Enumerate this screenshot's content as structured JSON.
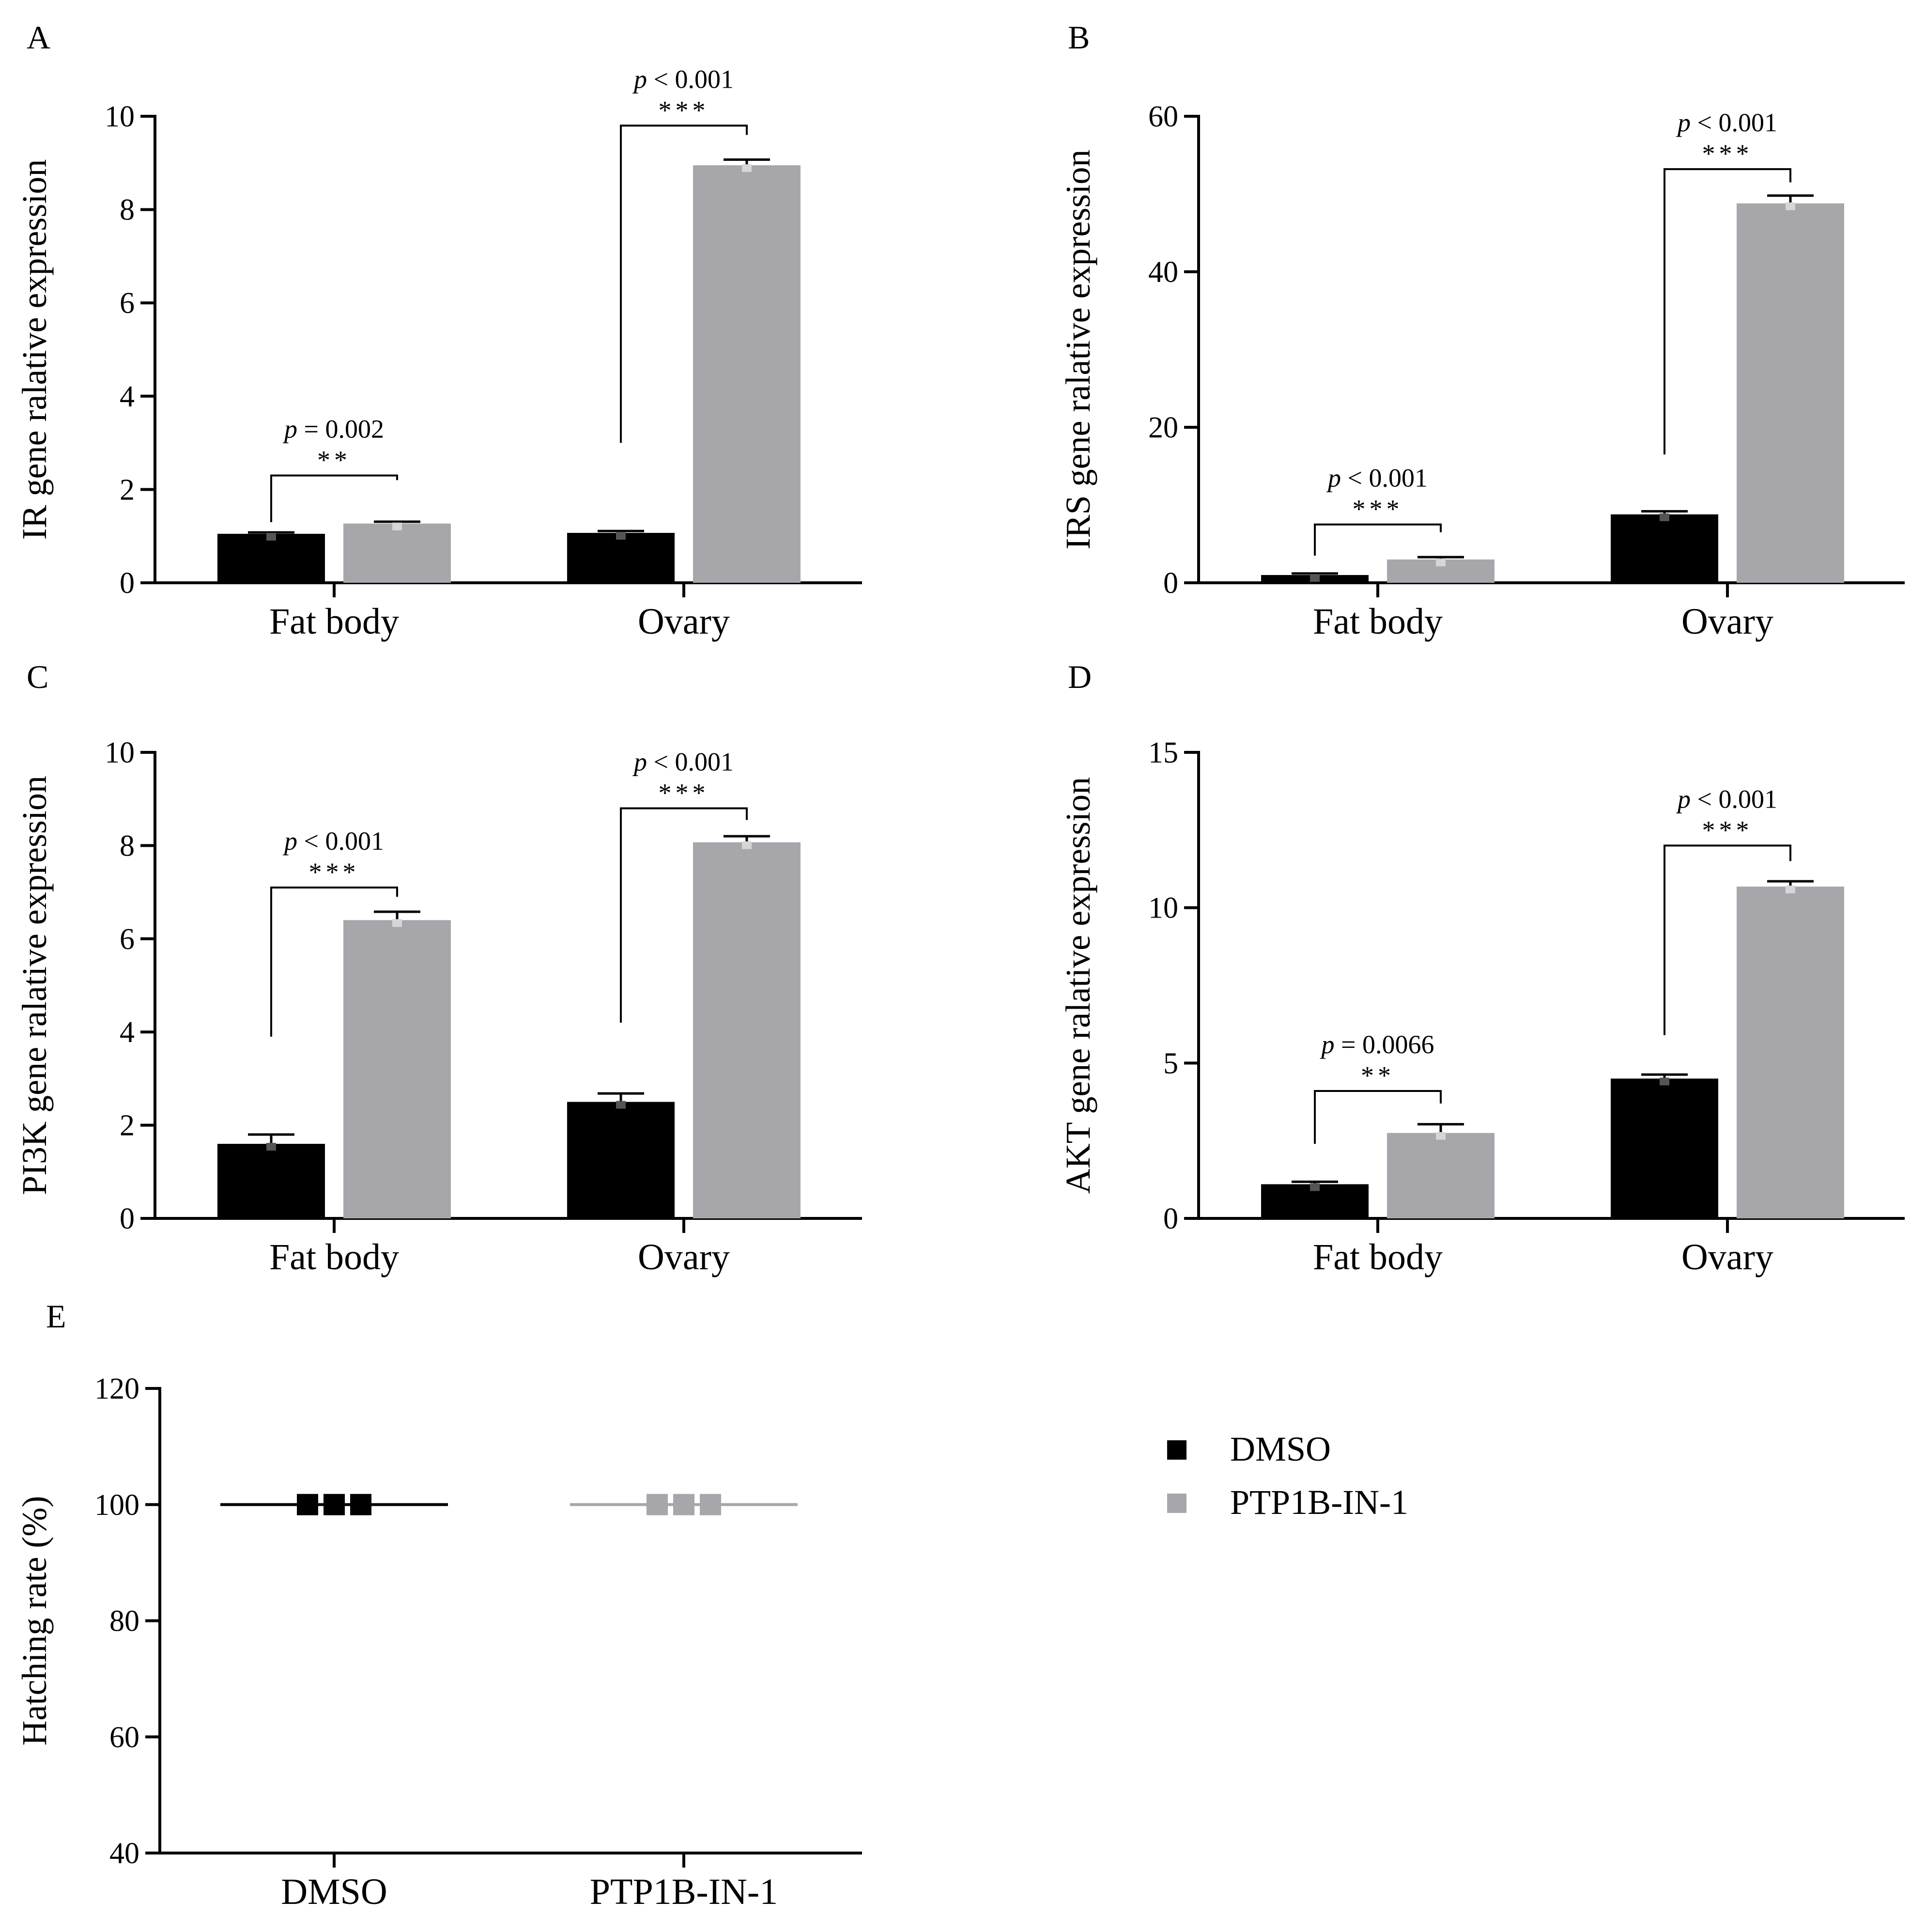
{
  "figure": {
    "legend": [
      {
        "label": "DMSO",
        "color": "#000000"
      },
      {
        "label": "PTP1B-IN-1",
        "color": "#a7a6ab"
      }
    ]
  },
  "chart_data": [
    {
      "id": "A",
      "type": "bar",
      "panel_label": "A",
      "ylabel": "IR gene ralative expression",
      "ylim": [
        0,
        10
      ],
      "yticks": [
        0,
        2,
        4,
        6,
        8,
        10
      ],
      "categories": [
        "Fat body",
        "Ovary"
      ],
      "series": [
        {
          "name": "DMSO",
          "color": "#000000",
          "values": [
            1.05,
            1.07
          ],
          "errors": [
            0.03,
            0.04
          ]
        },
        {
          "name": "PTP1B-IN-1",
          "color": "#a7a6ab",
          "values": [
            1.27,
            8.95
          ],
          "errors": [
            0.04,
            0.12
          ]
        }
      ],
      "annotations": [
        {
          "category": 0,
          "p_prefix": "p",
          "p_text": " = 0.002",
          "stars": "**",
          "bracket_y": 2.3,
          "left_end": 1.3,
          "right_end": 2.2
        },
        {
          "category": 1,
          "p_prefix": "p",
          "p_text": " < 0.001",
          "stars": "***",
          "bracket_y": 9.8,
          "left_end": 3.0,
          "right_end": 9.6
        }
      ]
    },
    {
      "id": "B",
      "type": "bar",
      "panel_label": "B",
      "ylabel": "IRS gene ralative expression",
      "ylim": [
        0,
        60
      ],
      "yticks": [
        0,
        20,
        40,
        60
      ],
      "categories": [
        "Fat body",
        "Ovary"
      ],
      "series": [
        {
          "name": "DMSO",
          "color": "#000000",
          "values": [
            1.0,
            8.8
          ],
          "errors": [
            0.2,
            0.4
          ]
        },
        {
          "name": "PTP1B-IN-1",
          "color": "#a7a6ab",
          "values": [
            3.0,
            48.8
          ],
          "errors": [
            0.3,
            1.0
          ]
        }
      ],
      "annotations": [
        {
          "category": 0,
          "p_prefix": "p",
          "p_text": " < 0.001",
          "stars": "***",
          "bracket_y": 7.5,
          "left_end": 3.5,
          "right_end": 6.5
        },
        {
          "category": 1,
          "p_prefix": "p",
          "p_text": " < 0.001",
          "stars": "***",
          "bracket_y": 53.2,
          "left_end": 16.5,
          "right_end": 51.5
        }
      ]
    },
    {
      "id": "C",
      "type": "bar",
      "panel_label": "C",
      "ylabel": "PI3K gene ralative expression",
      "ylim": [
        0,
        10
      ],
      "yticks": [
        0,
        2,
        4,
        6,
        8,
        10
      ],
      "categories": [
        "Fat body",
        "Ovary"
      ],
      "series": [
        {
          "name": "DMSO",
          "color": "#000000",
          "values": [
            1.6,
            2.5
          ],
          "errors": [
            0.2,
            0.18
          ]
        },
        {
          "name": "PTP1B-IN-1",
          "color": "#a7a6ab",
          "values": [
            6.4,
            8.07
          ],
          "errors": [
            0.18,
            0.13
          ]
        }
      ],
      "annotations": [
        {
          "category": 0,
          "p_prefix": "p",
          "p_text": " < 0.001",
          "stars": "***",
          "bracket_y": 7.1,
          "left_end": 3.9,
          "right_end": 6.9
        },
        {
          "category": 1,
          "p_prefix": "p",
          "p_text": " < 0.001",
          "stars": "***",
          "bracket_y": 8.8,
          "left_end": 4.2,
          "right_end": 8.55
        }
      ]
    },
    {
      "id": "D",
      "type": "bar",
      "panel_label": "D",
      "ylabel": "AKT gene ralative expression",
      "ylim": [
        0,
        15
      ],
      "yticks": [
        0,
        5,
        10,
        15
      ],
      "categories": [
        "Fat body",
        "Ovary"
      ],
      "series": [
        {
          "name": "DMSO",
          "color": "#000000",
          "values": [
            1.1,
            4.5
          ],
          "errors": [
            0.08,
            0.13
          ]
        },
        {
          "name": "PTP1B-IN-1",
          "color": "#a7a6ab",
          "values": [
            2.75,
            10.68
          ],
          "errors": [
            0.28,
            0.17
          ]
        }
      ],
      "annotations": [
        {
          "category": 0,
          "p_prefix": "p",
          "p_text": " = 0.0066",
          "stars": "**",
          "bracket_y": 4.1,
          "left_end": 2.4,
          "right_end": 3.7
        },
        {
          "category": 1,
          "p_prefix": "p",
          "p_text": " < 0.001",
          "stars": "***",
          "bracket_y": 12.0,
          "left_end": 5.9,
          "right_end": 11.5
        }
      ]
    },
    {
      "id": "E",
      "type": "scatter",
      "panel_label": "E",
      "ylabel": "Hatching rate (%)",
      "ylim": [
        40,
        120
      ],
      "yticks": [
        40,
        60,
        80,
        100,
        120
      ],
      "categories": [
        "DMSO",
        "PTP1B-IN-1"
      ],
      "series": [
        {
          "name": "DMSO",
          "color": "#000000",
          "points": [
            100,
            100,
            100
          ],
          "mean": 100
        },
        {
          "name": "PTP1B-IN-1",
          "color": "#a7a6ab",
          "points": [
            100,
            100,
            100
          ],
          "mean": 100
        }
      ]
    }
  ]
}
